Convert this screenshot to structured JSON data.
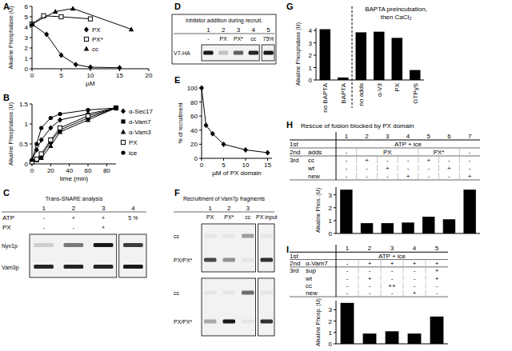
{
  "chart_data": [
    {
      "panel": "A",
      "type": "line",
      "x_label": "µM",
      "y_label": "Alkaline Phosphatase (U)",
      "xlim": [
        0,
        20
      ],
      "xticks": [
        0,
        5,
        10,
        15,
        20
      ],
      "ylim": [
        0,
        6
      ],
      "yticks": [
        0,
        1,
        2,
        3,
        4,
        5,
        6
      ],
      "legend": "right",
      "series": [
        {
          "name": "PX",
          "color": "#000000",
          "marker": "diamond",
          "x": [
            0,
            2.5,
            5,
            7.5,
            10,
            15
          ],
          "values": [
            4.3,
            3.3,
            1.3,
            0.4,
            0.15,
            0.1
          ]
        },
        {
          "name": "PX*",
          "color": "#000000",
          "marker": "square_open",
          "x": [
            0,
            2,
            5,
            10
          ],
          "values": [
            4.3,
            5.1,
            5.0,
            4.8
          ]
        },
        {
          "name": "cc",
          "color": "#000000",
          "marker": "triangle",
          "x": [
            0,
            4,
            7,
            17
          ],
          "values": [
            4.3,
            5.5,
            5.8,
            3.8
          ]
        }
      ]
    },
    {
      "panel": "B",
      "type": "line",
      "x_label": "time (min)",
      "y_label": "Alkaline Phsophatase (U)",
      "xlim": [
        0,
        90
      ],
      "xticks": [
        0,
        20,
        40,
        60,
        80
      ],
      "ylim": [
        0,
        1.5
      ],
      "yticks": [
        0,
        0.5,
        1,
        1.5
      ],
      "legend": "right",
      "x": [
        0,
        5,
        10,
        20,
        30,
        60,
        90
      ],
      "series": [
        {
          "name": "α-Sec17",
          "color": "#000000",
          "marker": "diamond",
          "values": [
            0.1,
            0.35,
            0.6,
            0.9,
            1.1,
            1.25,
            1.4
          ]
        },
        {
          "name": "α-Vam7",
          "color": "#000000",
          "marker": "square",
          "values": [
            0.05,
            0.1,
            0.2,
            0.55,
            0.85,
            1.15,
            1.4
          ]
        },
        {
          "name": "α-Vam3",
          "color": "#000000",
          "marker": "triangle",
          "values": [
            0.05,
            0.1,
            0.15,
            0.45,
            0.8,
            1.1,
            1.4
          ]
        },
        {
          "name": "PX",
          "color": "#000000",
          "marker": "square_open",
          "values": [
            0.05,
            0.12,
            0.25,
            0.6,
            0.9,
            1.2,
            1.4
          ]
        },
        {
          "name": "ice",
          "color": "#000000",
          "marker": "circle",
          "values": [
            0.1,
            0.5,
            0.9,
            1.15,
            1.25,
            1.35,
            1.4
          ]
        }
      ]
    },
    {
      "panel": "E",
      "type": "line",
      "x_label": "µM of PX domain",
      "y_label": "% of recruitment",
      "xlim": [
        0,
        16
      ],
      "xticks": [
        0,
        5,
        10,
        15
      ],
      "ylim": [
        0,
        100
      ],
      "yticks": [
        0,
        20,
        40,
        60,
        80,
        100
      ],
      "x": [
        0,
        1,
        2.5,
        5,
        10,
        15
      ],
      "series": [
        {
          "color": "#000000",
          "marker": "diamond",
          "values": [
            100,
            47,
            35,
            20,
            12,
            8
          ]
        }
      ]
    },
    {
      "panel": "G",
      "type": "bar",
      "y_label": "Alkaline Phosphatase (U)",
      "annotations": [
        "BAPTA preincubation,",
        "then CaCl₂"
      ],
      "categories": [
        "no BAPTA",
        "BAPTA",
        "no adds",
        "α-V3",
        "PX",
        "GTPγS"
      ],
      "values": [
        4.1,
        0.2,
        3.85,
        3.9,
        3.4,
        0.8
      ],
      "color": "#000000",
      "ylim": [
        0,
        4.2
      ],
      "yticks": [
        0,
        1,
        2,
        3,
        4
      ]
    },
    {
      "panel": "H",
      "type": "bar",
      "title": "Rescue of fusion blocked by PX domain",
      "y_label": "Alkaline Phos. (U)",
      "categories": [
        "1",
        "2",
        "3",
        "4",
        "5",
        "6",
        "7"
      ],
      "values": [
        3.4,
        0.8,
        0.8,
        0.85,
        1.3,
        1.1,
        3.4
      ],
      "color": "#000000",
      "ylim": [
        0,
        3.6
      ],
      "yticks": [
        0,
        1,
        2,
        3
      ]
    },
    {
      "panel": "I",
      "type": "bar",
      "y_label": "Alkaline Phosp. (U)",
      "categories": [
        "1",
        "2",
        "3",
        "4",
        "5"
      ],
      "values": [
        3.6,
        0.9,
        1.1,
        0.9,
        2.4
      ],
      "color": "#000000",
      "ylim": [
        0,
        3.8
      ],
      "yticks": [
        0,
        1,
        2,
        3
      ]
    }
  ],
  "tables": [
    {
      "rows": [
        {
          "label": "1st",
          "cells": [
            {
              "text": "ATP + ice",
              "span": 7
            }
          ]
        },
        {
          "label": "2nd",
          "sub": "adds",
          "cells": [
            "-",
            {
              "text": "PX",
              "span": 3
            },
            {
              "text": "PX*",
              "span": 2
            },
            "-"
          ]
        },
        {
          "label": "3rd",
          "sub": "cc",
          "cells": [
            "-",
            "+",
            "-",
            "-",
            "+",
            "-",
            "-"
          ]
        },
        {
          "sub": "wt",
          "cells": [
            "-",
            "-",
            "+",
            "-",
            "-",
            "+",
            "-"
          ]
        },
        {
          "sub": "new",
          "cells": [
            "-",
            "-",
            "-",
            "+",
            "-",
            "-",
            "+"
          ]
        }
      ]
    },
    {
      "rows": [
        {
          "label": "1st",
          "cells": [
            {
              "text": "ATP + ice",
              "span": 5
            }
          ]
        },
        {
          "label": "2nd",
          "sub": "α-Vam7",
          "cells": [
            "-",
            "+",
            "+",
            "+",
            "+"
          ]
        },
        {
          "label": "3rd",
          "sub": "sup",
          "cells": [
            "-",
            "-",
            "-",
            "-",
            "+"
          ]
        },
        {
          "sub": "wt",
          "cells": [
            "-",
            "+",
            "-",
            "-",
            "+"
          ]
        },
        {
          "sub": "cc",
          "cells": [
            "-",
            "-",
            "++",
            "-",
            "-"
          ]
        },
        {
          "sub": "new",
          "cells": [
            "-",
            "-",
            "-",
            "+",
            "-"
          ]
        }
      ]
    }
  ],
  "blots": [
    {
      "panel": "C",
      "title": "Trans-SNARE analysis",
      "lanes": [
        "1",
        "2",
        "3",
        "4"
      ],
      "conditions": [
        {
          "label": "ATP",
          "cells": [
            "-",
            "+",
            "+",
            "5 %"
          ]
        },
        {
          "label": "PX",
          "cells": [
            "-",
            "-",
            "+",
            null
          ]
        }
      ],
      "gels": [
        [
          {
            "name": "Nyv1p",
            "intensity": [
              0.15,
              0.5,
              0.9,
              0.75
            ]
          },
          {
            "name": "Vam3p",
            "intensity": [
              0.85,
              0.85,
              0.85,
              0.9
            ]
          }
        ]
      ]
    },
    {
      "panel": "D",
      "title": "Inhibitor addition during recruit.",
      "lanes": [
        "1",
        "2",
        "3",
        "4",
        "5"
      ],
      "conditions": [
        {
          "cells": [
            "-",
            "PX",
            "PX*",
            "cc",
            "75%"
          ]
        }
      ],
      "gels": [
        [
          {
            "name": "V7-HA",
            "intensity": [
              0.9,
              0.2,
              0.6,
              0.85,
              0.9
            ]
          }
        ]
      ]
    },
    {
      "panel": "F",
      "title": "Recruitment of Vam7p fragments",
      "lanes": [
        "1",
        "2",
        "3",
        null
      ],
      "conditions": [
        {
          "cells": [
            "PX",
            "PX*",
            "cc",
            "PX input"
          ]
        }
      ],
      "gels": [
        [
          {
            "name": "cc",
            "intensity": [
              0.05,
              0.05,
              0.35,
              0.05
            ]
          },
          {
            "name": "PX/PX*",
            "intensity": [
              0.7,
              0.4,
              0.05,
              0.8
            ]
          }
        ],
        [
          {
            "name": "cc",
            "intensity": [
              0.05,
              0.05,
              0.55,
              0.05
            ]
          },
          {
            "name": "PX/PX*",
            "intensity": [
              0.3,
              0.9,
              0.05,
              0.8
            ]
          }
        ]
      ]
    }
  ]
}
